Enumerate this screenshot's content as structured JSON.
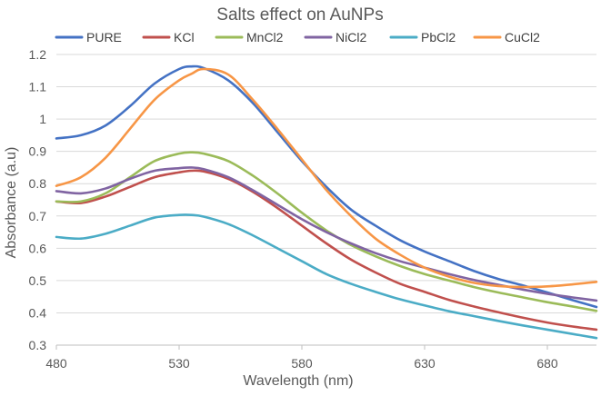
{
  "chart_data": {
    "type": "line",
    "title": "Salts effect on AuNPs",
    "xlabel": "Wavelength (nm)",
    "ylabel": "Absorbance (a.u)",
    "xlim": [
      480,
      700
    ],
    "ylim": [
      0.3,
      1.2
    ],
    "x_ticks": [
      480,
      530,
      580,
      630,
      680
    ],
    "y_ticks": [
      0.3,
      0.4,
      0.5,
      0.6,
      0.7,
      0.8,
      0.9,
      1,
      1.1,
      1.2
    ],
    "y_tick_labels": [
      "0.3",
      "0.4",
      "0.5",
      "0.6",
      "0.7",
      "0.8",
      "0.9",
      "1",
      "1.1",
      "1.2"
    ],
    "grid": "horizontal",
    "legend_position": "top",
    "x": [
      480,
      490,
      500,
      510,
      520,
      530,
      535,
      540,
      550,
      560,
      570,
      580,
      590,
      600,
      610,
      620,
      630,
      640,
      650,
      660,
      670,
      680,
      690,
      700
    ],
    "series": [
      {
        "name": "PURE",
        "color": "#4472C4",
        "values": [
          0.94,
          0.95,
          0.98,
          1.04,
          1.11,
          1.155,
          1.163,
          1.158,
          1.12,
          1.05,
          0.96,
          0.87,
          0.79,
          0.72,
          0.67,
          0.625,
          0.59,
          0.56,
          0.53,
          0.505,
          0.485,
          0.463,
          0.44,
          0.418
        ]
      },
      {
        "name": "KCl",
        "color": "#C0504D",
        "values": [
          0.745,
          0.74,
          0.76,
          0.79,
          0.82,
          0.835,
          0.84,
          0.838,
          0.815,
          0.775,
          0.725,
          0.67,
          0.615,
          0.565,
          0.525,
          0.49,
          0.465,
          0.44,
          0.42,
          0.402,
          0.385,
          0.37,
          0.358,
          0.348
        ]
      },
      {
        "name": "MnCl2",
        "color": "#9BBB59",
        "values": [
          0.745,
          0.745,
          0.77,
          0.82,
          0.87,
          0.893,
          0.897,
          0.893,
          0.87,
          0.825,
          0.77,
          0.71,
          0.655,
          0.61,
          0.575,
          0.545,
          0.52,
          0.5,
          0.48,
          0.463,
          0.448,
          0.433,
          0.42,
          0.406
        ]
      },
      {
        "name": "NiCl2",
        "color": "#8064A2",
        "values": [
          0.777,
          0.77,
          0.785,
          0.815,
          0.84,
          0.848,
          0.85,
          0.845,
          0.82,
          0.78,
          0.735,
          0.69,
          0.65,
          0.615,
          0.585,
          0.56,
          0.54,
          0.52,
          0.502,
          0.487,
          0.472,
          0.459,
          0.448,
          0.438
        ]
      },
      {
        "name": "PbCl2",
        "color": "#4BACC6",
        "values": [
          0.635,
          0.63,
          0.645,
          0.67,
          0.695,
          0.703,
          0.703,
          0.698,
          0.675,
          0.64,
          0.6,
          0.56,
          0.52,
          0.49,
          0.465,
          0.442,
          0.423,
          0.405,
          0.39,
          0.375,
          0.361,
          0.348,
          0.335,
          0.322
        ]
      },
      {
        "name": "CuCl2",
        "color": "#F79646",
        "values": [
          0.793,
          0.82,
          0.88,
          0.97,
          1.06,
          1.12,
          1.14,
          1.155,
          1.138,
          1.06,
          0.97,
          0.875,
          0.78,
          0.7,
          0.63,
          0.58,
          0.54,
          0.512,
          0.493,
          0.483,
          0.48,
          0.482,
          0.488,
          0.496
        ]
      }
    ]
  }
}
